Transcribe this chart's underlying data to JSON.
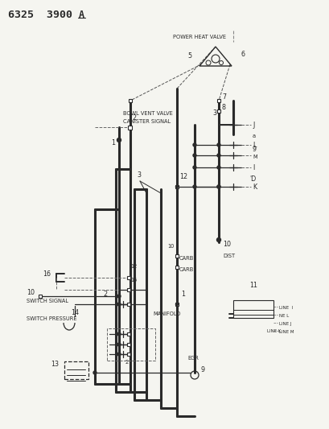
{
  "bg_color": "#f5f5f0",
  "line_color": "#2a2a2a",
  "title": "6325  3900",
  "title_suffix": "A",
  "labels": {
    "power_heat_valve": "POWER HEAT VALVE",
    "bowl_vent_valve": "BOWL VENT VALVE",
    "canister_signal": "CANISTER SIGNAL",
    "switch_signal": "SWITCH SIGNAL",
    "switch_pressure": "SWITCH PRESSURE",
    "manifold": "MANIFOLD",
    "egr": "EGR",
    "dist": "DIST",
    "carb": "CARB",
    "line_i": "LINE I",
    "ne_l": "NE L",
    "line_j": "LINE J",
    "line_m": "LINE M",
    "line_k": "LINE K"
  },
  "figsize": [
    4.1,
    5.33
  ],
  "dpi": 100
}
